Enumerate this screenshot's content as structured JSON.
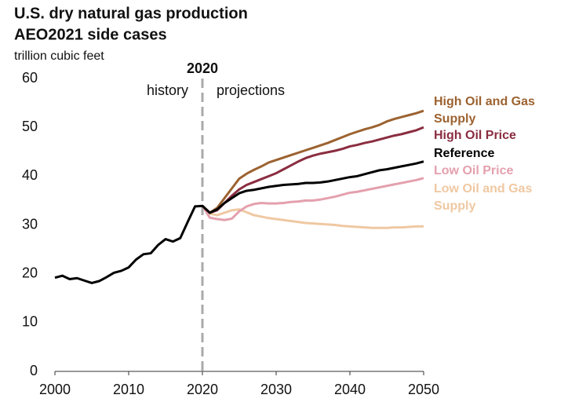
{
  "chart_data": {
    "type": "line",
    "title": "U.S. dry natural gas production",
    "subtitle": "AEO2021 side cases",
    "y_label": "trillion cubic feet",
    "divider": {
      "x": 2020,
      "label": "2020",
      "left": "history",
      "right": "projections"
    },
    "x": [
      2000,
      2001,
      2002,
      2003,
      2004,
      2005,
      2006,
      2007,
      2008,
      2009,
      2010,
      2011,
      2012,
      2013,
      2014,
      2015,
      2016,
      2017,
      2018,
      2019,
      2020,
      2021,
      2022,
      2023,
      2024,
      2025,
      2026,
      2027,
      2028,
      2029,
      2030,
      2031,
      2032,
      2033,
      2034,
      2035,
      2036,
      2037,
      2038,
      2039,
      2040,
      2041,
      2042,
      2043,
      2044,
      2045,
      2046,
      2047,
      2048,
      2049,
      2050
    ],
    "xlim": [
      2000,
      2050
    ],
    "xticks": [
      2000,
      2010,
      2020,
      2030,
      2040,
      2050
    ],
    "ylim": [
      0,
      60
    ],
    "yticks": [
      0,
      10,
      20,
      30,
      40,
      50,
      60
    ],
    "grid": false,
    "series": [
      {
        "name": "High Oil and Gas Supply",
        "color": "#9c6230",
        "values": [
          null,
          null,
          null,
          null,
          null,
          null,
          null,
          null,
          null,
          null,
          null,
          null,
          null,
          null,
          null,
          null,
          null,
          null,
          null,
          null,
          33.9,
          32.5,
          33.5,
          35.5,
          37.5,
          39.5,
          40.5,
          41.3,
          42.0,
          42.8,
          43.3,
          43.8,
          44.3,
          44.8,
          45.3,
          45.8,
          46.3,
          46.8,
          47.4,
          48.0,
          48.6,
          49.1,
          49.6,
          50.0,
          50.5,
          51.2,
          51.7,
          52.1,
          52.5,
          52.9,
          53.4
        ]
      },
      {
        "name": "High Oil Price",
        "color": "#8a2d40",
        "values": [
          null,
          null,
          null,
          null,
          null,
          null,
          null,
          null,
          null,
          null,
          null,
          null,
          null,
          null,
          null,
          null,
          null,
          null,
          null,
          null,
          33.9,
          32.5,
          33.0,
          34.5,
          36.0,
          37.3,
          38.2,
          38.8,
          39.4,
          40.0,
          40.6,
          41.4,
          42.2,
          43.0,
          43.7,
          44.2,
          44.6,
          44.9,
          45.2,
          45.6,
          46.1,
          46.4,
          46.8,
          47.1,
          47.5,
          47.9,
          48.3,
          48.6,
          49.0,
          49.4,
          50.0
        ]
      },
      {
        "name": "Reference",
        "color": "#000000",
        "values": [
          19.2,
          19.6,
          18.9,
          19.1,
          18.6,
          18.1,
          18.5,
          19.3,
          20.2,
          20.6,
          21.3,
          22.9,
          24.0,
          24.2,
          25.9,
          27.1,
          26.6,
          27.3,
          30.6,
          33.8,
          33.9,
          32.5,
          33.2,
          34.5,
          35.5,
          36.5,
          37.0,
          37.2,
          37.5,
          37.8,
          38.0,
          38.2,
          38.3,
          38.4,
          38.6,
          38.6,
          38.7,
          38.9,
          39.2,
          39.5,
          39.8,
          40.0,
          40.4,
          40.8,
          41.2,
          41.4,
          41.7,
          42.0,
          42.3,
          42.6,
          43.0
        ]
      },
      {
        "name": "Low Oil Price",
        "color": "#e4a0ad",
        "values": [
          null,
          null,
          null,
          null,
          null,
          null,
          null,
          null,
          null,
          null,
          null,
          null,
          null,
          null,
          null,
          null,
          null,
          null,
          null,
          null,
          33.9,
          31.5,
          31.2,
          31.0,
          31.3,
          32.8,
          33.8,
          34.3,
          34.5,
          34.4,
          34.4,
          34.5,
          34.7,
          34.8,
          35.0,
          35.0,
          35.2,
          35.5,
          35.8,
          36.2,
          36.6,
          36.8,
          37.1,
          37.4,
          37.7,
          38.0,
          38.3,
          38.6,
          38.9,
          39.2,
          39.6
        ]
      },
      {
        "name": "Low Oil and Gas Supply",
        "color": "#efc8a2",
        "values": [
          null,
          null,
          null,
          null,
          null,
          null,
          null,
          null,
          null,
          null,
          null,
          null,
          null,
          null,
          null,
          null,
          null,
          null,
          null,
          null,
          33.9,
          32.3,
          32.0,
          32.5,
          33.0,
          33.2,
          32.6,
          32.0,
          31.7,
          31.4,
          31.2,
          31.0,
          30.8,
          30.6,
          30.4,
          30.3,
          30.2,
          30.1,
          30.0,
          29.8,
          29.7,
          29.6,
          29.5,
          29.4,
          29.4,
          29.4,
          29.5,
          29.5,
          29.6,
          29.7,
          29.7
        ]
      }
    ]
  }
}
